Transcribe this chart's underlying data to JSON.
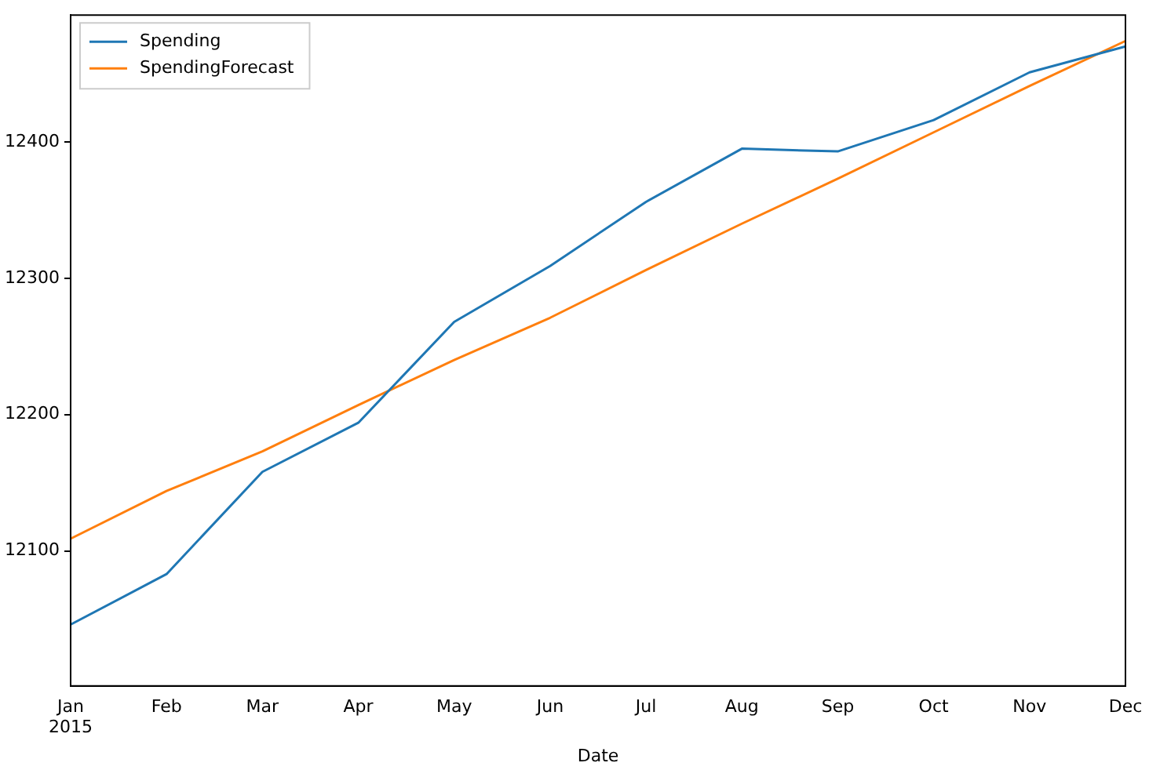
{
  "chart_data": {
    "type": "line",
    "xlabel": "Date",
    "categories": [
      "Jan\n2015",
      "Feb",
      "Mar",
      "Apr",
      "May",
      "Jun",
      "Jul",
      "Aug",
      "Sep",
      "Oct",
      "Nov",
      "Dec"
    ],
    "series": [
      {
        "name": "Spending",
        "color": "#1f77b4",
        "values": [
          12046,
          12083,
          12158,
          12194,
          12268,
          12309,
          12356,
          12395,
          12393,
          12416,
          12451,
          12470
        ]
      },
      {
        "name": "SpendingForecast",
        "color": "#ff7f0e",
        "values": [
          12109,
          12144,
          12173,
          12207,
          12240,
          12271,
          12306,
          12340,
          12373,
          12407,
          12441,
          12474
        ]
      }
    ],
    "ylim": [
      12001,
      12493
    ],
    "yticks": [
      12100,
      12200,
      12300,
      12400
    ],
    "grid": false,
    "legend": "top left",
    "marker": "none",
    "line_style": "solid"
  }
}
